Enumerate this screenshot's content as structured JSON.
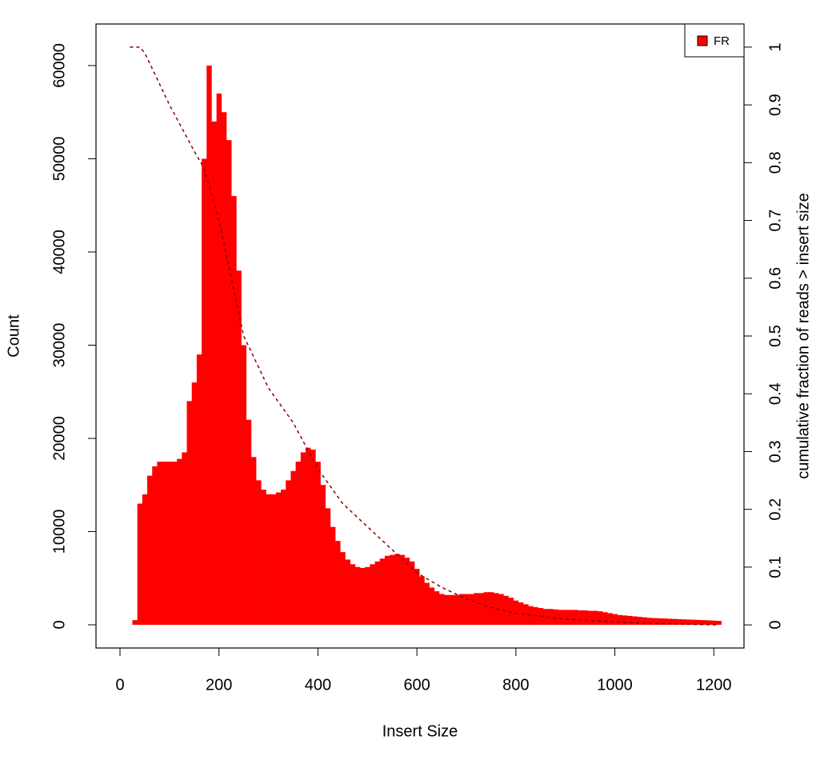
{
  "chart_data": {
    "type": "bar",
    "xlabel": "Insert Size",
    "ylabel": "Count",
    "y2label": "cumulative fraction of reads > insert size",
    "xlim": [
      -48.5,
      1261
    ],
    "ylim": [
      -2490,
      64460
    ],
    "y2lim": [
      -0.04,
      1.04
    ],
    "xticks": [
      0,
      200,
      400,
      600,
      800,
      1000,
      1200
    ],
    "yticks": [
      0,
      10000,
      20000,
      30000,
      40000,
      50000,
      60000
    ],
    "y2ticks": [
      0,
      0.1,
      0.2,
      0.3,
      0.4,
      0.5,
      0.6,
      0.7,
      0.8,
      0.9,
      1
    ],
    "legend": "top-right",
    "series": [
      {
        "name": "FR",
        "color": "#ff0000",
        "x": [
          20,
          30,
          40,
          50,
          60,
          70,
          80,
          90,
          100,
          110,
          120,
          130,
          140,
          150,
          160,
          170,
          180,
          190,
          200,
          210,
          220,
          230,
          240,
          250,
          260,
          270,
          280,
          290,
          300,
          310,
          320,
          330,
          340,
          350,
          360,
          370,
          380,
          390,
          400,
          410,
          420,
          430,
          440,
          450,
          460,
          470,
          480,
          490,
          500,
          510,
          520,
          530,
          540,
          550,
          560,
          570,
          580,
          590,
          600,
          610,
          620,
          630,
          640,
          650,
          660,
          670,
          680,
          690,
          700,
          710,
          720,
          730,
          740,
          750,
          760,
          770,
          780,
          790,
          800,
          810,
          820,
          830,
          840,
          850,
          860,
          870,
          880,
          890,
          900,
          910,
          920,
          930,
          940,
          950,
          960,
          970,
          980,
          990,
          1000,
          1010,
          1020,
          1030,
          1040,
          1050,
          1060,
          1070,
          1080,
          1090,
          1100,
          1110,
          1120,
          1130,
          1140,
          1150,
          1160,
          1170,
          1180,
          1190,
          1200,
          1210
        ],
        "values": [
          0,
          500,
          13000,
          14000,
          16000,
          17000,
          17500,
          17500,
          17500,
          17500,
          17800,
          18500,
          24000,
          26000,
          29000,
          50000,
          60000,
          54000,
          57000,
          55000,
          52000,
          46000,
          38000,
          30000,
          22000,
          18000,
          15500,
          14500,
          14000,
          14000,
          14200,
          14500,
          15500,
          16500,
          17500,
          18500,
          19000,
          18800,
          17500,
          15000,
          12500,
          10500,
          9000,
          7800,
          7000,
          6500,
          6200,
          6100,
          6200,
          6500,
          6800,
          7100,
          7400,
          7500,
          7600,
          7500,
          7200,
          6800,
          6000,
          5200,
          4500,
          4000,
          3600,
          3300,
          3200,
          3200,
          3200,
          3300,
          3300,
          3300,
          3400,
          3400,
          3500,
          3500,
          3400,
          3300,
          3100,
          2900,
          2600,
          2400,
          2200,
          2000,
          1900,
          1800,
          1700,
          1700,
          1650,
          1600,
          1600,
          1600,
          1600,
          1550,
          1550,
          1500,
          1500,
          1450,
          1350,
          1250,
          1150,
          1050,
          1000,
          950,
          900,
          850,
          800,
          750,
          720,
          700,
          680,
          650,
          630,
          600,
          580,
          560,
          540,
          520,
          500,
          480,
          450,
          420
        ]
      },
      {
        "type": "line",
        "axis": "y2",
        "color": "#8b0000",
        "dash": true,
        "x": [
          20,
          40,
          50,
          100,
          150,
          170,
          200,
          250,
          300,
          350,
          400,
          450,
          500,
          550,
          600,
          650,
          700,
          750,
          800,
          900,
          1000,
          1100,
          1210
        ],
        "values": [
          1,
          1,
          0.99,
          0.9,
          0.82,
          0.79,
          0.7,
          0.5,
          0.41,
          0.35,
          0.27,
          0.21,
          0.17,
          0.13,
          0.09,
          0.065,
          0.045,
          0.03,
          0.02,
          0.01,
          0.005,
          0.002,
          0
        ]
      }
    ]
  }
}
